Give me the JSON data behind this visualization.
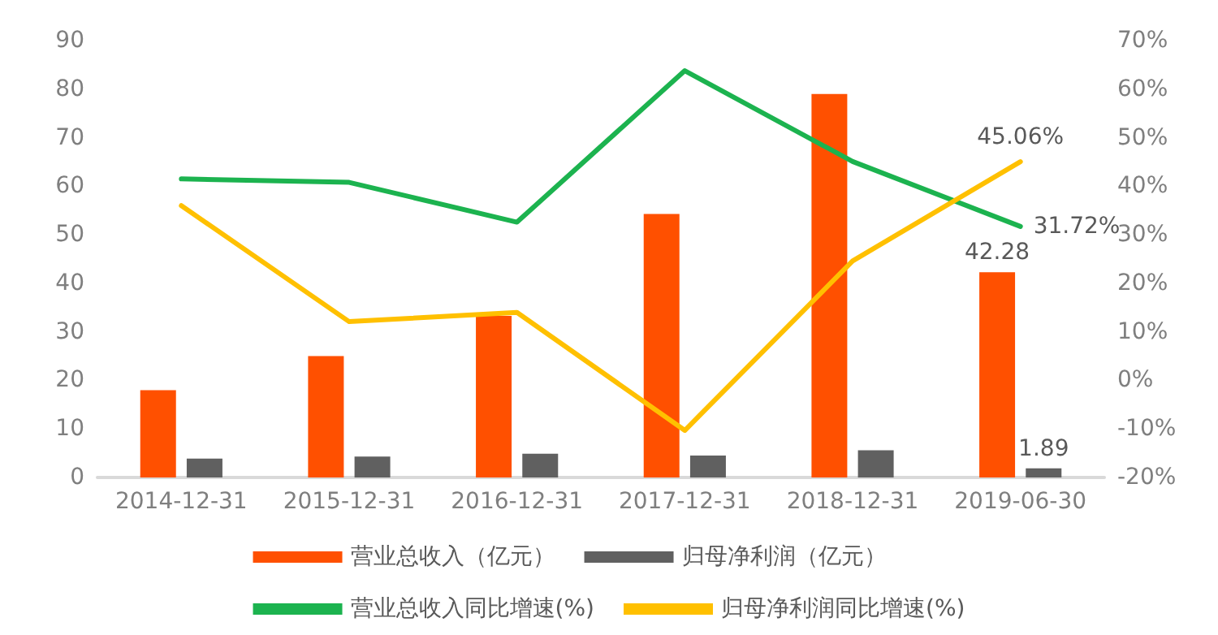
{
  "chart_data": {
    "type": "bar",
    "categories": [
      "2014-12-31",
      "2015-12-31",
      "2016-12-31",
      "2017-12-31",
      "2018-12-31",
      "2019-06-30"
    ],
    "series": [
      {
        "name": "营业总收入（亿元）",
        "color": "#ff5000",
        "values": [
          18,
          25,
          33.3,
          54.3,
          79,
          42.28
        ],
        "value_labels": [
          null,
          null,
          null,
          null,
          null,
          "42.28"
        ]
      },
      {
        "name": "归母净利润（亿元）",
        "color": "#606060",
        "values": [
          3.9,
          4.3,
          4.9,
          4.5,
          5.6,
          1.89
        ],
        "value_labels": [
          null,
          null,
          null,
          null,
          null,
          "1.89"
        ]
      },
      {
        "name": "营业总收入同比增速(%)",
        "type": "line",
        "axis": "y2",
        "color": "#1cb34f",
        "values": [
          41.5,
          40.8,
          32.6,
          63.8,
          45.1,
          31.72
        ],
        "value_labels": [
          null,
          null,
          null,
          null,
          null,
          "31.72%"
        ]
      },
      {
        "name": "归母净利润同比增速(%)",
        "type": "line",
        "axis": "y2",
        "color": "#ffc000",
        "values": [
          36,
          12.1,
          14,
          -10.3,
          24.6,
          45.06
        ],
        "value_labels": [
          null,
          null,
          null,
          null,
          null,
          "45.06%"
        ]
      }
    ],
    "ylim": [
      0,
      90
    ],
    "yticks": [
      0,
      10,
      20,
      30,
      40,
      50,
      60,
      70,
      80,
      90
    ],
    "y2lim": [
      -20,
      70
    ],
    "y2ticks": [
      {
        "value": -20,
        "label": "-20%"
      },
      {
        "value": -10,
        "label": "-10%"
      },
      {
        "value": 0,
        "label": "0%"
      },
      {
        "value": 10,
        "label": "10%"
      },
      {
        "value": 20,
        "label": "20%"
      },
      {
        "value": 30,
        "label": "30%"
      },
      {
        "value": 40,
        "label": "40%"
      },
      {
        "value": 50,
        "label": "50%"
      },
      {
        "value": 60,
        "label": "60%"
      },
      {
        "value": 70,
        "label": "70%"
      }
    ],
    "grid": false,
    "legend": "bottom",
    "marker": "none",
    "line_style": "solid"
  }
}
